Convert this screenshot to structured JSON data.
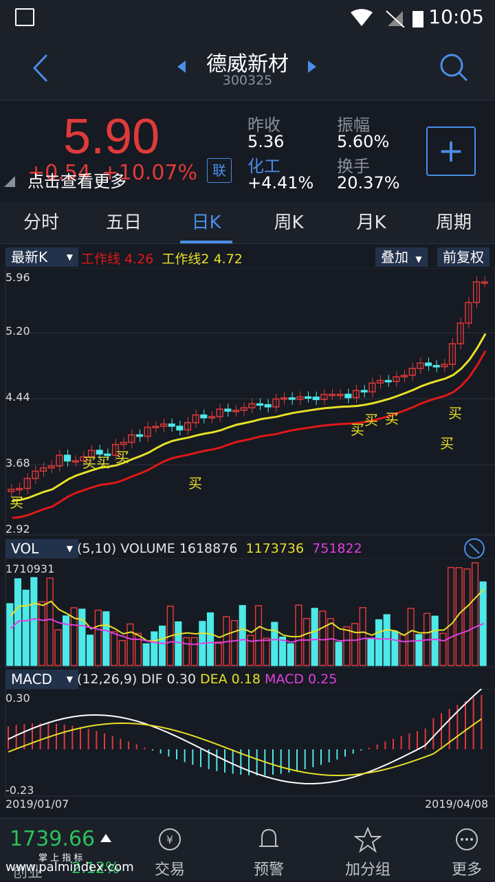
{
  "status": {
    "time": "10:05"
  },
  "nav": {
    "title": "德威新材",
    "code": "300325"
  },
  "quote": {
    "price": "5.90",
    "change": "+0.54",
    "change_pct": "+10.07%",
    "tip": "点击查看更多",
    "lian": "联",
    "prev_close_label": "昨收",
    "prev_close": "5.36",
    "amplitude_label": "振幅",
    "amplitude": "5.60%",
    "sector_label": "化工",
    "sector_pct": "+4.41%",
    "turnover_label": "换手",
    "turnover": "20.37%",
    "plus": "+"
  },
  "tabs": [
    "分时",
    "五日",
    "日K",
    "周K",
    "月K",
    "周期"
  ],
  "active_tab": 2,
  "kchart": {
    "dropdown": "最新K",
    "line1_label": "工作线",
    "line1_value": "4.26",
    "line2_label": "工作线2",
    "line2_value": "4.72",
    "overlay_btn": "叠加",
    "adjust_btn": "前复权",
    "yticks": [
      "5.96",
      "5.20",
      "4.44",
      "3.68",
      "2.92"
    ],
    "buy_label": "买",
    "colors": {
      "up": "#e03a3a",
      "down": "#4de8e8",
      "line1": "#e01818",
      "line2": "#e8e028"
    }
  },
  "vol": {
    "dropdown": "VOL",
    "params": "(5,10)",
    "name": "VOLUME",
    "value": "1618876",
    "ma5": "1173736",
    "ma10": "751822",
    "max": "1710931"
  },
  "macd": {
    "dropdown": "MACD",
    "params": "(12,26,9)",
    "dif_label": "DIF",
    "dif": "0.30",
    "dea_label": "DEA",
    "dea": "0.18",
    "macd_label": "MACD",
    "macd": "0.25",
    "top": "0.30",
    "bottom": "-0.23",
    "date_start": "2019/01/07",
    "date_end": "2019/04/08"
  },
  "bottom": {
    "index_value": "1739.66",
    "index_caption": "掌 上 指 标",
    "index_sub": "创业",
    "index_pct": "2.12%",
    "watermark": "www.palmindex.com",
    "items": [
      "交易",
      "预警",
      "加分组",
      "更多"
    ]
  }
}
